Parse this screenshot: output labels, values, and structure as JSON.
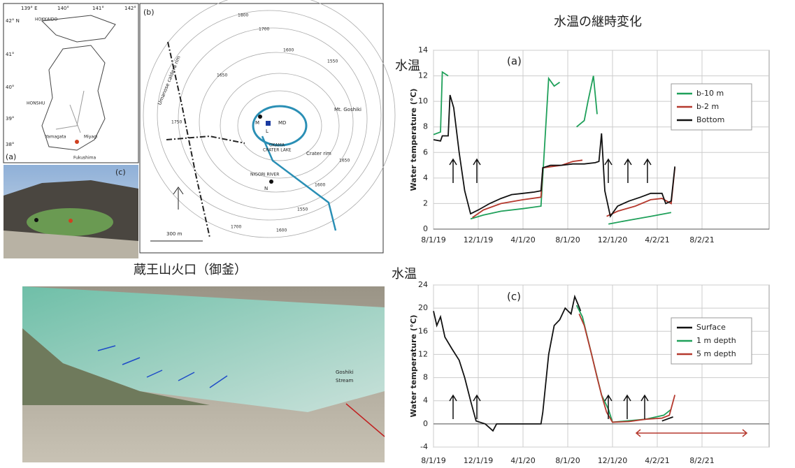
{
  "title": "水温の継時変化",
  "map_a": {
    "label": "(a)",
    "lon": [
      "139° E",
      "140°",
      "141°",
      "142°"
    ],
    "lat": [
      "42° N",
      "41°",
      "40°",
      "39°",
      "38°"
    ],
    "places": [
      "HOKKAIDO",
      "HONSHU",
      "Yamagata",
      "Miyagi",
      "Fukushima"
    ]
  },
  "map_b": {
    "label": "(b)",
    "contours": [
      "1800",
      "1700",
      "1600",
      "1550",
      "1650",
      "1750",
      "1650",
      "1600",
      "1700",
      "1600",
      "1550"
    ],
    "rim": "Umanose caldera rim",
    "peak": "Mt. Goshiki",
    "sites": [
      "M",
      "L",
      "MD",
      "N"
    ],
    "lake": [
      "OKAMA",
      "CRATER LAKE"
    ],
    "crater_rim": "Crater rim",
    "river": "NIGORI RIVER",
    "scale": "300 m"
  },
  "photo_c": {
    "label": "(c)"
  },
  "caption": "蔵王山火口（御釜）",
  "photo": {
    "label": [
      "Goshiki",
      "Stream"
    ]
  },
  "chart_data": [
    {
      "type": "line",
      "side_title": "水温",
      "annotation": "(a)",
      "y_label": "Water temperature (°C)",
      "xlim": [
        "2019-08-01",
        "2022-02-01"
      ],
      "xticks": [
        {
          "value": "2019-08-01",
          "label": "8/1/19"
        },
        {
          "value": "2019-12-01",
          "label": "12/1/19"
        },
        {
          "value": "2020-04-01",
          "label": "4/1/20"
        },
        {
          "value": "2020-08-01",
          "label": "8/1/20"
        },
        {
          "value": "2020-12-01",
          "label": "12/1/20"
        },
        {
          "value": "2021-04-02",
          "label": "4/2/21"
        },
        {
          "value": "2021-08-02",
          "label": "8/2/21"
        }
      ],
      "ylim": [
        0,
        14
      ],
      "yticks": [
        0,
        2,
        4,
        6,
        8,
        10,
        12,
        14
      ],
      "grid": true,
      "series": [
        {
          "name": "b-10 m",
          "color": "#1fa05a",
          "x": [
            "2019-08-01",
            "2019-08-20",
            "2019-08-25",
            "2019-09-10",
            "2019-09-14",
            "2019-11-10",
            "2019-12-15",
            "2020-02-01",
            "2020-04-01",
            "2020-05-20",
            "2020-06-10",
            "2020-06-25",
            "2020-07-10",
            "2020-07-15",
            "2020-08-25",
            "2020-09-15",
            "2020-09-25",
            "2020-10-10",
            "2020-10-20",
            "2020-10-25",
            "2020-11-20",
            "2021-01-15",
            "2021-03-15",
            "2021-05-10"
          ],
          "values": [
            7.4,
            7.6,
            12.3,
            12.0,
            null,
            0.8,
            1.1,
            1.4,
            1.6,
            1.8,
            11.8,
            11.2,
            11.5,
            null,
            8.0,
            8.5,
            10.0,
            12.0,
            9.0,
            null,
            0.4,
            0.7,
            1.0,
            1.3
          ]
        },
        {
          "name": "b-2 m",
          "color": "#b5392e",
          "x": [
            "2019-11-15",
            "2019-12-15",
            "2020-02-01",
            "2020-04-01",
            "2020-05-20",
            "2020-05-25",
            "2020-07-15",
            "2020-08-15",
            "2020-09-10",
            "2020-09-12",
            "2020-11-15",
            "2020-12-15",
            "2021-02-01",
            "2021-03-15",
            "2021-04-15",
            "2021-05-10",
            "2021-05-20"
          ],
          "values": [
            0.9,
            1.5,
            2.0,
            2.3,
            2.5,
            4.8,
            5.0,
            5.3,
            5.4,
            null,
            1.0,
            1.4,
            1.8,
            2.3,
            2.4,
            2.0,
            4.8
          ]
        },
        {
          "name": "Bottom",
          "color": "#111111",
          "x": [
            "2019-08-01",
            "2019-08-20",
            "2019-08-25",
            "2019-09-10",
            "2019-09-15",
            "2019-09-25",
            "2019-10-10",
            "2019-10-25",
            "2019-11-10",
            "2019-12-01",
            "2020-01-01",
            "2020-02-01",
            "2020-03-01",
            "2020-04-01",
            "2020-05-01",
            "2020-05-20",
            "2020-05-25",
            "2020-06-15",
            "2020-07-15",
            "2020-08-15",
            "2020-09-15",
            "2020-10-15",
            "2020-10-25",
            "2020-11-01",
            "2020-11-10",
            "2020-11-25",
            "2020-12-15",
            "2021-01-15",
            "2021-02-15",
            "2021-03-15",
            "2021-04-15",
            "2021-04-25",
            "2021-05-10",
            "2021-05-20"
          ],
          "values": [
            7.0,
            6.9,
            7.3,
            7.3,
            10.5,
            9.5,
            6.0,
            3.0,
            1.2,
            1.5,
            2.0,
            2.4,
            2.7,
            2.8,
            2.9,
            3.0,
            4.8,
            5.0,
            5.0,
            5.1,
            5.1,
            5.2,
            5.3,
            7.5,
            3.0,
            1.0,
            1.8,
            2.2,
            2.5,
            2.8,
            2.8,
            2.0,
            2.2,
            4.9
          ]
        }
      ]
    },
    {
      "type": "line",
      "side_title": "水温",
      "annotation": "(c)",
      "y_label": "Water temperature (°C)",
      "xlim": [
        "2019-08-01",
        "2022-02-01"
      ],
      "xticks": [
        {
          "value": "2019-08-01",
          "label": "8/1/19"
        },
        {
          "value": "2019-12-01",
          "label": "12/1/19"
        },
        {
          "value": "2020-04-01",
          "label": "4/1/20"
        },
        {
          "value": "2020-08-01",
          "label": "8/1/20"
        },
        {
          "value": "2020-12-01",
          "label": "12/1/20"
        },
        {
          "value": "2021-04-02",
          "label": "4/2/21"
        },
        {
          "value": "2021-08-02",
          "label": "8/2/21"
        }
      ],
      "ylim": [
        -4,
        24
      ],
      "yticks": [
        -4,
        0,
        4,
        8,
        12,
        16,
        20,
        24
      ],
      "grid": true,
      "series": [
        {
          "name": "Surface",
          "color": "#111111",
          "x": [
            "2019-08-01",
            "2019-08-10",
            "2019-08-20",
            "2019-09-01",
            "2019-09-20",
            "2019-10-10",
            "2019-10-25",
            "2019-11-10",
            "2019-11-25",
            "2019-12-20",
            "2020-01-10",
            "2020-01-20",
            "2020-02-15",
            "2020-04-01",
            "2020-05-20",
            "2020-05-25",
            "2020-06-10",
            "2020-06-25",
            "2020-07-10",
            "2020-07-25",
            "2020-08-10",
            "2020-08-20",
            "2020-08-30",
            "2020-09-05",
            "2020-09-20",
            "2021-04-15",
            "2021-05-15"
          ],
          "values": [
            19.5,
            17,
            18.5,
            15,
            13,
            11,
            8,
            4,
            0.5,
            0,
            -1.2,
            0,
            0,
            0,
            0,
            2,
            12,
            17,
            18,
            20,
            19,
            22,
            20.5,
            19.5,
            null,
            0.5,
            1.2
          ]
        },
        {
          "name": "1 m depth",
          "color": "#1fa05a",
          "x": [
            "2020-08-25",
            "2020-09-10",
            "2020-10-05",
            "2020-11-01",
            "2020-11-20",
            "2020-12-01",
            "2021-03-01",
            "2021-04-20",
            "2021-05-10"
          ],
          "values": [
            20.5,
            18.5,
            12,
            5,
            2.5,
            0.3,
            0.8,
            1.5,
            2.5
          ]
        },
        {
          "name": "5 m depth",
          "color": "#b5392e",
          "x": [
            "2020-09-01",
            "2020-09-15",
            "2020-10-05",
            "2020-10-20",
            "2020-11-01",
            "2020-11-15",
            "2020-12-01",
            "2021-01-15",
            "2021-03-01",
            "2021-04-15",
            "2021-05-05",
            "2021-05-20"
          ],
          "values": [
            19,
            17,
            12,
            8,
            5,
            2,
            0.3,
            0.4,
            0.8,
            1.0,
            1.5,
            5
          ]
        }
      ]
    }
  ]
}
